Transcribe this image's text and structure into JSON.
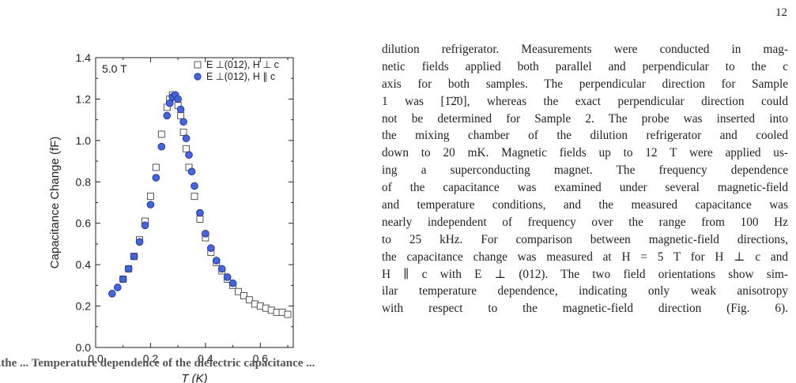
{
  "page_number": "12",
  "body_lines": [
    "dilution refrigerator. Measurements were conducted in mag-",
    "netic fields applied both parallel and perpendicular to the c",
    "axis for both samples. The perpendicular direction for Sample",
    "1 was [1̄2̄0], whereas the exact perpendicular direction could",
    "not be determined for Sample 2. The probe was inserted into",
    "the mixing chamber of the dilution refrigerator and cooled",
    "down to 20 mK. Magnetic fields up to 12 T were applied us-",
    "ing a superconducting magnet. The frequency dependence",
    "of the capacitance was examined under several magnetic-field",
    "and temperature conditions, and the measured capacitance was",
    "nearly independent of frequency over the range from 100 Hz",
    "to 25 kHz. For comparison between magnetic-field directions,",
    "the capacitance change was measured at H = 5 T for H ⊥ c and",
    "H ∥ c with E ⊥ (012). The two field orientations show sim-",
    "ilar temperature dependence, indicating only weak anisotropy",
    "with respect to the magnetic-field direction (Fig. 6)."
  ],
  "caption_fragment": "...the ... Temperature dependence of the dielectric capacitance ...",
  "chart_data": {
    "type": "scatter",
    "annotation": "5.0 T",
    "xlabel": "T (K)",
    "ylabel": "Capacitance Change (fF)",
    "xlim": [
      0.0,
      0.72
    ],
    "ylim": [
      0.0,
      1.4
    ],
    "xticks": [
      "0.0",
      "0.2",
      "0.4",
      "0.6"
    ],
    "yticks": [
      "0.0",
      "0.2",
      "0.4",
      "0.6",
      "0.8",
      "1.0",
      "1.2",
      "1.4"
    ],
    "legend_position": "top-right",
    "grid": false,
    "series": [
      {
        "name": "E ⊥(012), H ⊥ c",
        "marker": "open-square",
        "color": "#444444",
        "x": [
          0.1,
          0.12,
          0.14,
          0.16,
          0.18,
          0.2,
          0.22,
          0.24,
          0.26,
          0.27,
          0.28,
          0.29,
          0.3,
          0.31,
          0.32,
          0.33,
          0.34,
          0.36,
          0.38,
          0.4,
          0.42,
          0.44,
          0.46,
          0.48,
          0.5,
          0.52,
          0.54,
          0.56,
          0.58,
          0.6,
          0.62,
          0.64,
          0.66,
          0.68,
          0.7
        ],
        "y": [
          0.33,
          0.38,
          0.44,
          0.52,
          0.61,
          0.73,
          0.87,
          1.03,
          1.16,
          1.2,
          1.22,
          1.21,
          1.17,
          1.12,
          1.04,
          0.96,
          0.87,
          0.73,
          0.62,
          0.53,
          0.46,
          0.41,
          0.37,
          0.33,
          0.3,
          0.27,
          0.25,
          0.23,
          0.21,
          0.2,
          0.19,
          0.18,
          0.17,
          0.17,
          0.16
        ]
      },
      {
        "name": "E ⊥(012), H ∥ c",
        "marker": "filled-circle",
        "color": "#4466dd",
        "x": [
          0.06,
          0.08,
          0.1,
          0.12,
          0.14,
          0.16,
          0.18,
          0.2,
          0.22,
          0.24,
          0.26,
          0.27,
          0.28,
          0.29,
          0.3,
          0.31,
          0.32,
          0.33,
          0.34,
          0.35,
          0.36,
          0.38,
          0.4,
          0.42,
          0.44,
          0.46,
          0.48,
          0.5
        ],
        "y": [
          0.26,
          0.29,
          0.33,
          0.38,
          0.44,
          0.51,
          0.59,
          0.69,
          0.82,
          0.97,
          1.12,
          1.18,
          1.21,
          1.22,
          1.2,
          1.15,
          1.09,
          1.01,
          0.93,
          0.85,
          0.78,
          0.65,
          0.55,
          0.48,
          0.42,
          0.38,
          0.34,
          0.31
        ]
      }
    ]
  }
}
